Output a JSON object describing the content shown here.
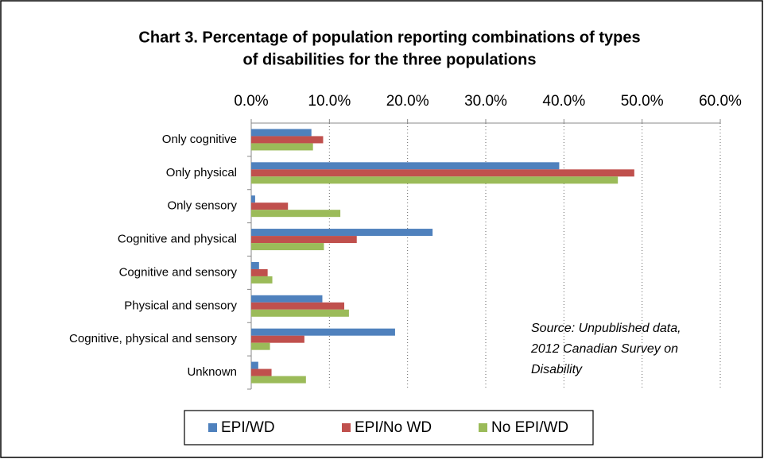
{
  "chart_data": {
    "type": "bar",
    "orientation": "horizontal",
    "title": [
      "Chart 3. Percentage of  population reporting combinations of types",
      "of disabilities for the three populations"
    ],
    "categories": [
      "Only cognitive",
      "Only physical",
      "Only sensory",
      "Cognitive and physical",
      "Cognitive and sensory",
      "Physical and sensory",
      "Cognitive, physical and sensory",
      "Unknown"
    ],
    "series": [
      {
        "name": "EPI/WD",
        "color": "#4f81bd",
        "values": [
          7.7,
          39.4,
          0.5,
          23.2,
          1.0,
          9.1,
          18.4,
          0.9
        ]
      },
      {
        "name": "EPI/No WD",
        "color": "#c0504d",
        "values": [
          9.2,
          49.0,
          4.7,
          13.5,
          2.1,
          11.9,
          6.8,
          2.6
        ]
      },
      {
        "name": "No EPI/WD",
        "color": "#9bbb59",
        "values": [
          7.9,
          46.9,
          11.4,
          9.3,
          2.7,
          12.5,
          2.4,
          7.0
        ]
      }
    ],
    "xlim": [
      0,
      60
    ],
    "xticks": [
      {
        "value": 0,
        "label": "0.0%"
      },
      {
        "value": 10,
        "label": "10.0%"
      },
      {
        "value": 20,
        "label": "20.0%"
      },
      {
        "value": 30,
        "label": "30.0%"
      },
      {
        "value": 40,
        "label": "40.0%"
      },
      {
        "value": 50,
        "label": "50.0%"
      },
      {
        "value": 60,
        "label": "60.0%"
      }
    ],
    "grid": true,
    "annotation": [
      "Source: Unpublished data,",
      "2012 Canadian Survey on",
      "Disability"
    ],
    "legend": "bottom"
  }
}
